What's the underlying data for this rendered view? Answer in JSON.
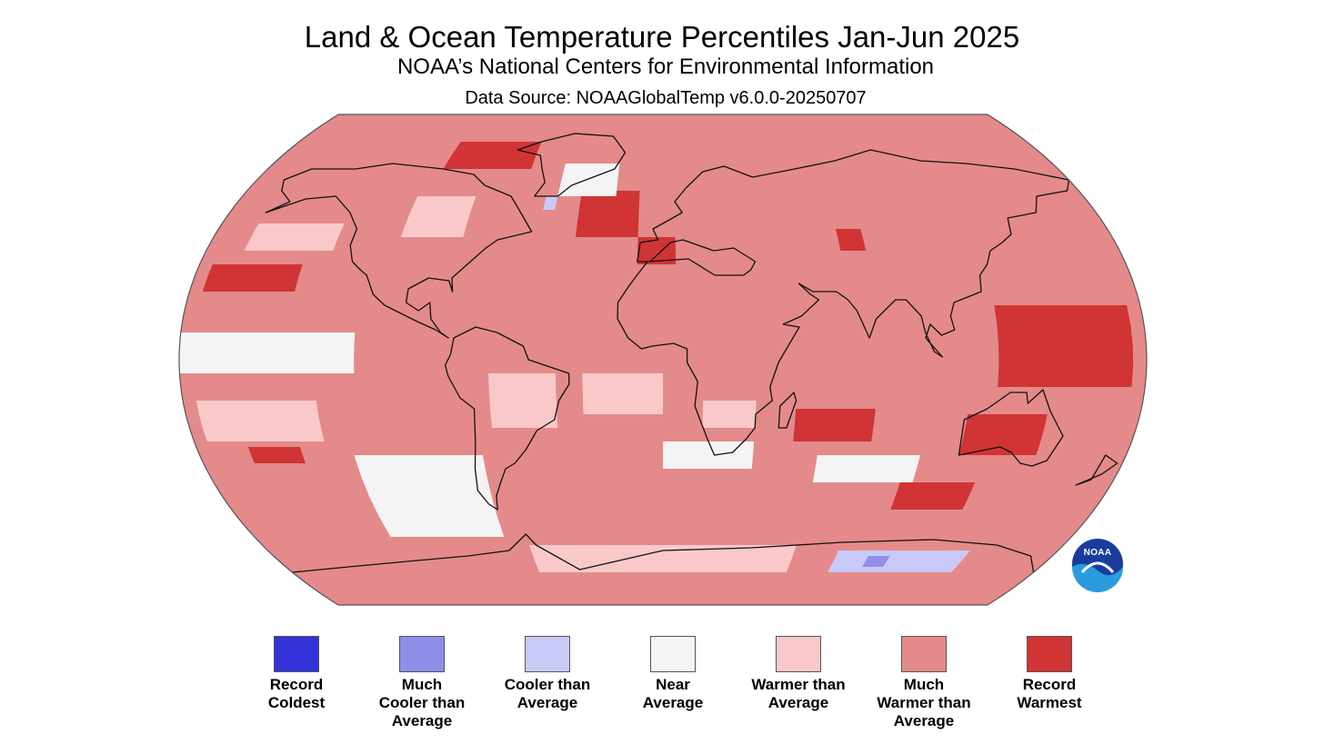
{
  "header": {
    "title": "Land & Ocean Temperature Percentiles Jan-Jun 2025",
    "subtitle": "NOAA’s National Centers for Environmental Information",
    "source": "Data Source: NOAAGlobalTemp v6.0.0-20250707"
  },
  "logo": {
    "text": "NOAA"
  },
  "colors": {
    "record_coldest": "#3333d9",
    "much_cooler": "#8f8fe8",
    "cooler": "#c9c9f7",
    "near": "#f4f4f4",
    "warmer": "#f9c9c9",
    "much_warmer": "#e48a8a",
    "record_warmest": "#d03434",
    "land_outline": "#111111",
    "map_border": "#555555"
  },
  "legend": [
    {
      "key": "record_coldest",
      "label": "Record\nColdest",
      "color": "#3333d9"
    },
    {
      "key": "much_cooler",
      "label": "Much\nCooler than\nAverage",
      "color": "#8f8fe8"
    },
    {
      "key": "cooler",
      "label": "Cooler than\nAverage",
      "color": "#c9c9f7"
    },
    {
      "key": "near",
      "label": "Near\nAverage",
      "color": "#f4f4f4"
    },
    {
      "key": "warmer",
      "label": "Warmer than\nAverage",
      "color": "#f9c9c9"
    },
    {
      "key": "much_warmer",
      "label": "Much\nWarmer than\nAverage",
      "color": "#e48a8a"
    },
    {
      "key": "record_warmest",
      "label": "Record\nWarmest",
      "color": "#d03434"
    }
  ],
  "map": {
    "projection": "Robinson",
    "default_category": "much_warmer",
    "regions": [
      {
        "name": "North Pacific record warm",
        "category": "record_warmest",
        "lon": [
          -175,
          -140
        ],
        "lat": [
          25,
          35
        ]
      },
      {
        "name": "North Atlantic record warm",
        "category": "record_warmest",
        "lon": [
          -35,
          -10
        ],
        "lat": [
          45,
          62
        ]
      },
      {
        "name": "Western Europe record warm",
        "category": "record_warmest",
        "lon": [
          -10,
          5
        ],
        "lat": [
          35,
          45
        ]
      },
      {
        "name": "Arctic Canada record warm",
        "category": "record_warmest",
        "lon": [
          -100,
          -60
        ],
        "lat": [
          70,
          80
        ]
      },
      {
        "name": "Central Asia record warm",
        "category": "record_warmest",
        "lon": [
          70,
          80
        ],
        "lat": [
          40,
          48
        ]
      },
      {
        "name": "Western Pacific record warm",
        "category": "record_warmest",
        "lon": [
          125,
          175
        ],
        "lat": [
          -10,
          20
        ]
      },
      {
        "name": "Indian Ocean record warm",
        "category": "record_warmest",
        "lon": [
          50,
          80
        ],
        "lat": [
          -30,
          -18
        ]
      },
      {
        "name": "Australia record warm",
        "category": "record_warmest",
        "lon": [
          115,
          145
        ],
        "lat": [
          -35,
          -20
        ]
      },
      {
        "name": "South Pacific record warm",
        "category": "record_warmest",
        "lon": [
          -160,
          -140
        ],
        "lat": [
          -38,
          -32
        ]
      },
      {
        "name": "Southern Ocean record warm",
        "category": "record_warmest",
        "lon": [
          95,
          125
        ],
        "lat": [
          -55,
          -45
        ]
      },
      {
        "name": "Eastern Pacific near average",
        "category": "near",
        "lon": [
          -180,
          -115
        ],
        "lat": [
          -5,
          10
        ]
      },
      {
        "name": "Southeast Pacific near average",
        "category": "near",
        "lon": [
          -120,
          -70
        ],
        "lat": [
          -65,
          -35
        ]
      },
      {
        "name": "South Atlantic near average",
        "category": "near",
        "lon": [
          0,
          35
        ],
        "lat": [
          -40,
          -30
        ]
      },
      {
        "name": "South Indian near average",
        "category": "near",
        "lon": [
          60,
          100
        ],
        "lat": [
          -45,
          -35
        ]
      },
      {
        "name": "Greenland near average",
        "category": "near",
        "lon": [
          -45,
          -20
        ],
        "lat": [
          60,
          72
        ]
      },
      {
        "name": "North America warmer",
        "category": "warmer",
        "lon": [
          -105,
          -80
        ],
        "lat": [
          45,
          60
        ]
      },
      {
        "name": "South America warmer",
        "category": "warmer",
        "lon": [
          -65,
          -40
        ],
        "lat": [
          -25,
          -5
        ]
      },
      {
        "name": "Africa warmer",
        "category": "warmer",
        "lon": [
          15,
          35
        ],
        "lat": [
          -25,
          -15
        ]
      },
      {
        "name": "North Pacific warmer",
        "category": "warmer",
        "lon": [
          -165,
          -130
        ],
        "lat": [
          40,
          50
        ]
      },
      {
        "name": "South Pacific warmer",
        "category": "warmer",
        "lon": [
          -175,
          -130
        ],
        "lat": [
          -30,
          -15
        ]
      },
      {
        "name": "Atlantic warmer",
        "category": "warmer",
        "lon": [
          -30,
          0
        ],
        "lat": [
          -20,
          -5
        ]
      },
      {
        "name": "Antarctica coast warmer",
        "category": "warmer",
        "lon": [
          -60,
          60
        ],
        "lat": [
          -78,
          -68
        ]
      },
      {
        "name": "Antarctica cooler",
        "category": "cooler",
        "lon": [
          80,
          140
        ],
        "lat": [
          -78,
          -70
        ]
      },
      {
        "name": "Antarctica much cooler",
        "category": "much_cooler",
        "lon": [
          95,
          105
        ],
        "lat": [
          -76,
          -72
        ]
      },
      {
        "name": "North Atlantic cooler",
        "category": "cooler",
        "lon": [
          -50,
          -45
        ],
        "lat": [
          55,
          60
        ]
      }
    ]
  }
}
